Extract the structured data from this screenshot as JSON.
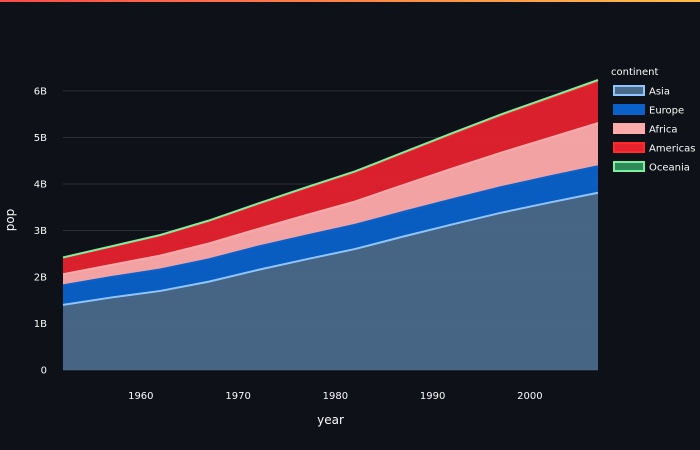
{
  "chart_data": {
    "type": "area",
    "stacked": true,
    "xlabel": "year",
    "ylabel": "pop",
    "x": [
      1952,
      1957,
      1962,
      1967,
      1972,
      1977,
      1982,
      1987,
      1992,
      1997,
      2002,
      2007
    ],
    "xlim": [
      1952,
      2007
    ],
    "x_ticks": [
      1960,
      1970,
      1980,
      1990,
      2000
    ],
    "ylim": [
      0,
      6.45
    ],
    "y_ticks": [
      0,
      1,
      2,
      3,
      4,
      5,
      6
    ],
    "y_tick_labels": [
      "0",
      "1B",
      "2B",
      "3B",
      "4B",
      "5B",
      "6B"
    ],
    "y_unit": "billions",
    "grid": true,
    "legend": {
      "title": "continent",
      "placement": "right-top",
      "entries": [
        "Asia",
        "Europe",
        "Africa",
        "Americas",
        "Oceania"
      ]
    },
    "series": [
      {
        "name": "Asia",
        "color": "#8fc5ff",
        "fill": "#4a6a8a",
        "values": [
          1.4,
          1.56,
          1.7,
          1.9,
          2.15,
          2.38,
          2.6,
          2.87,
          3.13,
          3.38,
          3.6,
          3.81
        ]
      },
      {
        "name": "Europe",
        "color": "#0a61c9",
        "fill": "#0a61c9",
        "values": [
          0.42,
          0.44,
          0.46,
          0.48,
          0.5,
          0.51,
          0.52,
          0.53,
          0.54,
          0.55,
          0.56,
          0.57
        ]
      },
      {
        "name": "Africa",
        "color": "#ffabab",
        "fill": "#ffabab",
        "values": [
          0.24,
          0.26,
          0.3,
          0.34,
          0.38,
          0.44,
          0.5,
          0.58,
          0.66,
          0.74,
          0.83,
          0.93
        ]
      },
      {
        "name": "Americas",
        "color": "#ff2b2b",
        "fill": "#e5222d",
        "values": [
          0.35,
          0.39,
          0.43,
          0.48,
          0.53,
          0.58,
          0.63,
          0.68,
          0.74,
          0.8,
          0.85,
          0.9
        ]
      },
      {
        "name": "Oceania",
        "color": "#7defa1",
        "fill": "#2e8b57",
        "values": [
          0.01,
          0.011,
          0.013,
          0.014,
          0.016,
          0.017,
          0.018,
          0.02,
          0.021,
          0.023,
          0.024,
          0.025
        ]
      }
    ],
    "series_colors": {
      "Asia": "#8fc5ff",
      "Europe": "#0a61c9",
      "Africa": "#ffabab",
      "Americas": "#ff2b2b",
      "Oceania": "#7defa1"
    }
  }
}
